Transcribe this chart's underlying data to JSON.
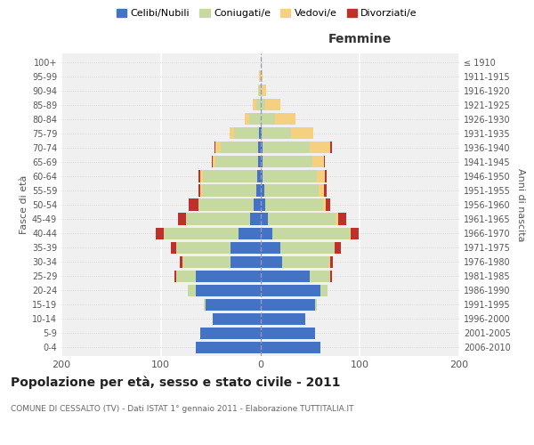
{
  "age_groups": [
    "0-4",
    "5-9",
    "10-14",
    "15-19",
    "20-24",
    "25-29",
    "30-34",
    "35-39",
    "40-44",
    "45-49",
    "50-54",
    "55-59",
    "60-64",
    "65-69",
    "70-74",
    "75-79",
    "80-84",
    "85-89",
    "90-94",
    "95-99",
    "100+"
  ],
  "birth_years": [
    "2006-2010",
    "2001-2005",
    "1996-2000",
    "1991-1995",
    "1986-1990",
    "1981-1985",
    "1976-1980",
    "1971-1975",
    "1966-1970",
    "1961-1965",
    "1956-1960",
    "1951-1955",
    "1946-1950",
    "1941-1945",
    "1936-1940",
    "1931-1935",
    "1926-1930",
    "1921-1925",
    "1916-1920",
    "1911-1915",
    "≤ 1910"
  ],
  "colors": {
    "celibi": "#4472c4",
    "coniugati": "#c5d9a0",
    "vedovi": "#f5d080",
    "divorziati": "#c0302a"
  },
  "males": {
    "celibi": [
      65,
      60,
      48,
      55,
      65,
      65,
      30,
      30,
      22,
      10,
      7,
      4,
      3,
      2,
      2,
      1,
      0,
      0,
      0,
      0,
      0
    ],
    "coniugati": [
      0,
      0,
      0,
      2,
      8,
      20,
      48,
      55,
      75,
      65,
      55,
      55,
      55,
      43,
      38,
      25,
      11,
      4,
      1,
      0,
      0
    ],
    "vedovi": [
      0,
      0,
      0,
      0,
      0,
      0,
      0,
      0,
      0,
      0,
      0,
      1,
      2,
      3,
      5,
      5,
      5,
      4,
      1,
      1,
      0
    ],
    "divorziati": [
      0,
      0,
      0,
      0,
      0,
      1,
      3,
      5,
      8,
      8,
      10,
      2,
      2,
      1,
      1,
      0,
      0,
      0,
      0,
      0,
      0
    ]
  },
  "females": {
    "nubili": [
      60,
      55,
      45,
      55,
      60,
      50,
      22,
      20,
      12,
      8,
      5,
      4,
      2,
      2,
      2,
      1,
      0,
      0,
      0,
      0,
      0
    ],
    "coniugate": [
      0,
      0,
      0,
      2,
      8,
      20,
      48,
      55,
      78,
      68,
      58,
      55,
      55,
      50,
      48,
      30,
      15,
      5,
      1,
      0,
      0
    ],
    "vedove": [
      0,
      0,
      0,
      0,
      0,
      0,
      0,
      0,
      1,
      2,
      3,
      5,
      8,
      12,
      20,
      22,
      20,
      15,
      5,
      2,
      1
    ],
    "divorziate": [
      0,
      0,
      0,
      0,
      0,
      2,
      3,
      6,
      8,
      8,
      4,
      3,
      2,
      1,
      2,
      0,
      0,
      0,
      0,
      0,
      0
    ]
  },
  "title_main": "Popolazione per età, sesso e stato civile - 2011",
  "title_sub": "COMUNE DI CESSALTO (TV) - Dati ISTAT 1° gennaio 2011 - Elaborazione TUTTITALIA.IT",
  "xlabel_right": "Femmine",
  "ylabel_left": "Fasce di età",
  "ylabel_right": "Anni di nascita",
  "xlim": 200,
  "legend_labels": [
    "Celibi/Nubili",
    "Coniugati/e",
    "Vedovi/e",
    "Divorziati/e"
  ],
  "bg_color": "#ffffff",
  "plot_bg": "#f0f0f0"
}
